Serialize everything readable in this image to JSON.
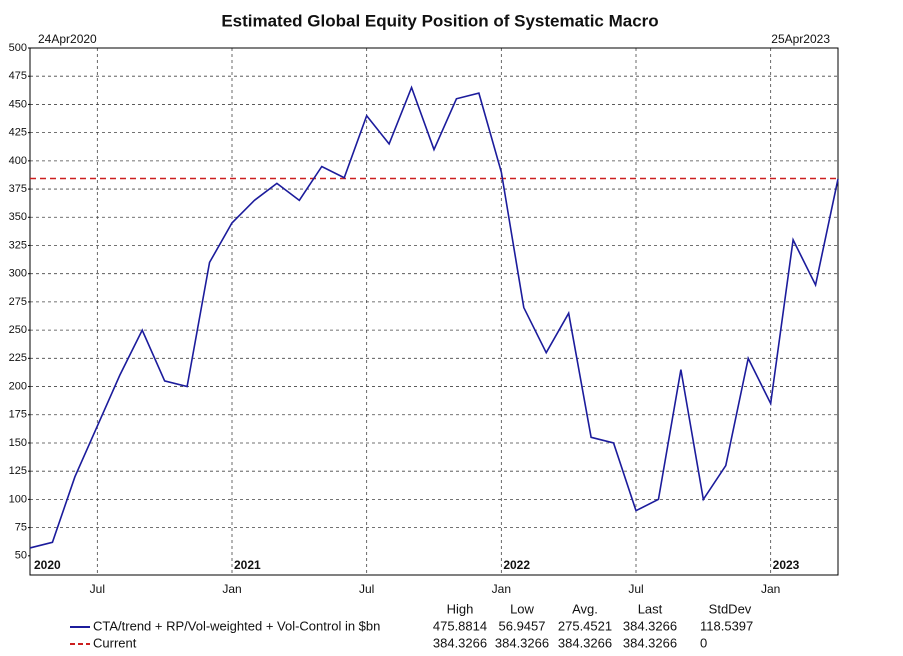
{
  "chart_data": {
    "type": "line",
    "title": "Estimated Global Equity Position of Systematic Macro",
    "start_label": "24Apr2020",
    "end_label": "25Apr2023",
    "x": [
      "2020-04",
      "2020-05",
      "2020-06",
      "2020-07",
      "2020-08",
      "2020-09",
      "2020-10",
      "2020-11",
      "2020-12",
      "2021-01",
      "2021-02",
      "2021-03",
      "2021-04",
      "2021-05",
      "2021-06",
      "2021-07",
      "2021-08",
      "2021-09",
      "2021-10",
      "2021-11",
      "2021-12",
      "2022-01",
      "2022-02",
      "2022-03",
      "2022-04",
      "2022-05",
      "2022-06",
      "2022-07",
      "2022-08",
      "2022-09",
      "2022-10",
      "2022-11",
      "2022-12",
      "2023-01",
      "2023-02",
      "2023-03",
      "2023-04"
    ],
    "series": [
      {
        "name": "CTA/trend + RP/Vol-weighted + Vol-Control in $bn",
        "color": "#1c1c9c",
        "values": [
          57,
          62,
          120,
          165,
          210,
          250,
          205,
          200,
          310,
          345,
          365,
          380,
          365,
          395,
          385,
          440,
          415,
          465,
          410,
          455,
          460,
          390,
          270,
          230,
          265,
          155,
          150,
          90,
          100,
          215,
          100,
          130,
          225,
          185,
          330,
          290,
          384
        ]
      }
    ],
    "hlines": [
      {
        "name": "Current",
        "value": 384.3266,
        "color": "#cc1f1f"
      }
    ],
    "ylim": [
      33,
      500
    ],
    "yticks": [
      50,
      75,
      100,
      125,
      150,
      175,
      200,
      225,
      250,
      275,
      300,
      325,
      350,
      375,
      400,
      425,
      450,
      475,
      500
    ],
    "xlim": [
      "2020-04",
      "2023-04"
    ],
    "xticks": [
      {
        "value": "2020-07",
        "label": "Jul"
      },
      {
        "value": "2021-01",
        "label": "Jan"
      },
      {
        "value": "2021-07",
        "label": "Jul"
      },
      {
        "value": "2022-01",
        "label": "Jan"
      },
      {
        "value": "2022-07",
        "label": "Jul"
      },
      {
        "value": "2023-01",
        "label": "Jan"
      }
    ],
    "year_labels": [
      {
        "value": "2020-04",
        "label": "2020"
      },
      {
        "value": "2021-01",
        "label": "2021"
      },
      {
        "value": "2022-01",
        "label": "2022"
      },
      {
        "value": "2023-01",
        "label": "2023"
      }
    ],
    "grid": true,
    "stats": {
      "headers": [
        "High",
        "Low",
        "Avg.",
        "Last",
        "StdDev"
      ],
      "rows": [
        [
          475.8814,
          56.9457,
          275.4521,
          384.3266,
          118.5397
        ],
        [
          384.3266,
          384.3266,
          384.3266,
          384.3266,
          0
        ]
      ]
    }
  }
}
